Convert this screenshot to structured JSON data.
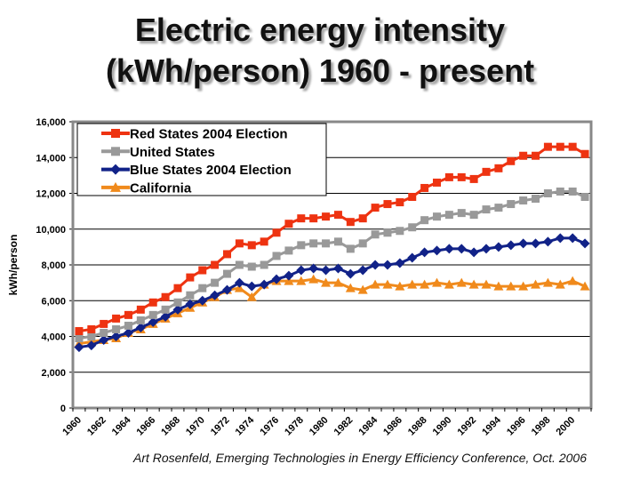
{
  "title_line1": "Electric energy intensity",
  "title_line2": "(kWh/person) 1960 - present",
  "footer": "Art Rosenfeld, Emerging Technologies in Energy Efficiency Conference, Oct. 2006",
  "chart_data": {
    "type": "line",
    "title": "Electric energy intensity (kWh/person) 1960 - present",
    "xlabel": "",
    "ylabel": "kWh/person",
    "ylim": [
      0,
      16000
    ],
    "yticks": [
      0,
      2000,
      4000,
      6000,
      8000,
      10000,
      12000,
      14000,
      16000
    ],
    "ytick_labels": [
      "0",
      "2,000",
      "4,000",
      "6,000",
      "8,000",
      "10,000",
      "12,000",
      "14,000",
      "16,000"
    ],
    "xtick_labels": [
      "1960",
      "1962",
      "1964",
      "1966",
      "1968",
      "1970",
      "1972",
      "1974",
      "1976",
      "1978",
      "1980",
      "1982",
      "1984",
      "1986",
      "1988",
      "1990",
      "1992",
      "1994",
      "1996",
      "1998",
      "2000"
    ],
    "grid": true,
    "legend": "top-left",
    "x": [
      1960,
      1961,
      1962,
      1963,
      1964,
      1965,
      1966,
      1967,
      1968,
      1969,
      1970,
      1971,
      1972,
      1973,
      1974,
      1975,
      1976,
      1977,
      1978,
      1979,
      1980,
      1981,
      1982,
      1983,
      1984,
      1985,
      1986,
      1987,
      1988,
      1989,
      1990,
      1991,
      1992,
      1993,
      1994,
      1995,
      1996,
      1997,
      1998,
      1999,
      2000,
      2001
    ],
    "series": [
      {
        "name": "Red States 2004 Election",
        "color": "#ee3311",
        "marker": "square",
        "values": [
          4300,
          4400,
          4700,
          5000,
          5200,
          5500,
          5900,
          6200,
          6700,
          7300,
          7700,
          8000,
          8600,
          9200,
          9100,
          9300,
          9800,
          10300,
          10600,
          10600,
          10700,
          10800,
          10400,
          10600,
          11200,
          11400,
          11500,
          11800,
          12300,
          12600,
          12900,
          12900,
          12800,
          13200,
          13400,
          13800,
          14100,
          14100,
          14600,
          14600,
          14600,
          14200
        ]
      },
      {
        "name": "United States",
        "color": "#999999",
        "marker": "square",
        "values": [
          3900,
          4000,
          4200,
          4400,
          4600,
          4900,
          5200,
          5500,
          5900,
          6300,
          6700,
          7000,
          7500,
          8000,
          7900,
          8000,
          8500,
          8800,
          9100,
          9200,
          9200,
          9300,
          8900,
          9200,
          9700,
          9800,
          9900,
          10100,
          10500,
          10700,
          10800,
          10900,
          10800,
          11100,
          11200,
          11400,
          11600,
          11700,
          12000,
          12100,
          12100,
          11800
        ]
      },
      {
        "name": "Blue States 2004 Election",
        "color": "#112288",
        "marker": "diamond",
        "values": [
          3400,
          3500,
          3800,
          4000,
          4200,
          4500,
          4800,
          5100,
          5500,
          5800,
          6000,
          6300,
          6600,
          7000,
          6800,
          6900,
          7200,
          7400,
          7700,
          7800,
          7700,
          7800,
          7500,
          7700,
          8000,
          8000,
          8100,
          8400,
          8700,
          8800,
          8900,
          8900,
          8700,
          8900,
          9000,
          9100,
          9200,
          9200,
          9300,
          9500,
          9500,
          9200
        ]
      },
      {
        "name": "California",
        "color": "#f08a1c",
        "marker": "triangle",
        "values": [
          3600,
          3700,
          3800,
          3900,
          4200,
          4400,
          4700,
          5000,
          5300,
          5600,
          5900,
          6200,
          6600,
          6700,
          6200,
          6900,
          7100,
          7100,
          7100,
          7200,
          7000,
          7000,
          6700,
          6600,
          6900,
          6900,
          6800,
          6900,
          6900,
          7000,
          6900,
          7000,
          6900,
          6900,
          6800,
          6800,
          6800,
          6900,
          7000,
          6900,
          7100,
          6800
        ]
      }
    ]
  }
}
